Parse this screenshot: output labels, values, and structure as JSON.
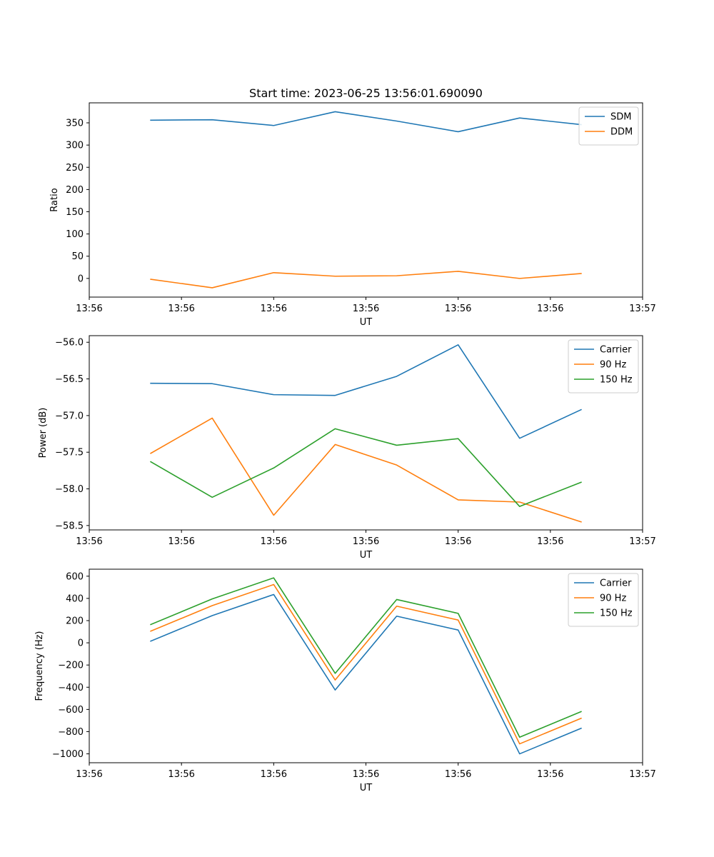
{
  "figure": {
    "title": "Start time: 2023-06-25 13:56:01.690090"
  },
  "colors": {
    "c0": "#1f77b4",
    "c1": "#ff7f0e",
    "c2": "#2ca02c"
  },
  "chart_data": [
    {
      "type": "line",
      "title": "Start time: 2023-06-25 13:56:01.690090",
      "xlabel": "UT",
      "ylabel": "Ratio",
      "xlim": [
        0,
        9
      ],
      "x": [
        1,
        2,
        3,
        4,
        5,
        6,
        7,
        8
      ],
      "x_tick_positions": [
        0,
        1.5,
        3,
        4.5,
        6,
        7.5,
        9
      ],
      "x_tick_labels": [
        "13:56",
        "13:56",
        "13:56",
        "13:56",
        "13:56",
        "13:56",
        "13:57"
      ],
      "ylim": [
        -42,
        395
      ],
      "y_ticks": [
        0,
        50,
        100,
        150,
        200,
        250,
        300,
        350
      ],
      "legend": "top-right",
      "series": [
        {
          "name": "SDM",
          "color": "#1f77b4",
          "values": [
            356,
            357,
            344,
            375,
            354,
            330,
            361,
            346
          ]
        },
        {
          "name": "DDM",
          "color": "#ff7f0e",
          "values": [
            -2,
            -21,
            13,
            5,
            6,
            16,
            0,
            11
          ]
        }
      ]
    },
    {
      "type": "line",
      "title": "",
      "xlabel": "UT",
      "ylabel": "Power (dB)",
      "xlim": [
        0,
        9
      ],
      "x": [
        1,
        2,
        3,
        4,
        5,
        6,
        7,
        8
      ],
      "x_tick_positions": [
        0,
        1.5,
        3,
        4.5,
        6,
        7.5,
        9
      ],
      "x_tick_labels": [
        "13:56",
        "13:56",
        "13:56",
        "13:56",
        "13:56",
        "13:56",
        "13:57"
      ],
      "ylim": [
        -58.56,
        -55.91
      ],
      "y_ticks": [
        -58.5,
        -58.0,
        -57.5,
        -57.0,
        -56.5,
        -56.0
      ],
      "y_tick_labels": [
        "−58.5",
        "−58.0",
        "−57.5",
        "−57.0",
        "−56.5",
        "−56.0"
      ],
      "legend": "top-right",
      "series": [
        {
          "name": "Carrier",
          "color": "#1f77b4",
          "values": [
            -56.56,
            -56.565,
            -56.715,
            -56.725,
            -56.465,
            -56.035,
            -57.31,
            -56.92
          ]
        },
        {
          "name": "90 Hz",
          "color": "#ff7f0e",
          "values": [
            -57.515,
            -57.035,
            -58.36,
            -57.395,
            -57.675,
            -58.15,
            -58.18,
            -58.45
          ]
        },
        {
          "name": "150 Hz",
          "color": "#2ca02c",
          "values": [
            -57.63,
            -58.115,
            -57.715,
            -57.18,
            -57.405,
            -57.315,
            -58.24,
            -57.91
          ]
        }
      ]
    },
    {
      "type": "line",
      "title": "",
      "xlabel": "UT",
      "ylabel": "Frequency (Hz)",
      "xlim": [
        0,
        9
      ],
      "x": [
        1,
        2,
        3,
        4,
        5,
        6,
        7,
        8
      ],
      "x_tick_positions": [
        0,
        1.5,
        3,
        4.5,
        6,
        7.5,
        9
      ],
      "x_tick_labels": [
        "13:56",
        "13:56",
        "13:56",
        "13:56",
        "13:56",
        "13:56",
        "13:57"
      ],
      "ylim": [
        -1080,
        663
      ],
      "y_ticks": [
        -1000,
        -800,
        -600,
        -400,
        -200,
        0,
        200,
        400,
        600
      ],
      "y_tick_labels": [
        "−1000",
        "−800",
        "−600",
        "−400",
        "−200",
        "0",
        "200",
        "400",
        "600"
      ],
      "legend": "top-right",
      "series": [
        {
          "name": "Carrier",
          "color": "#1f77b4",
          "values": [
            15,
            245,
            435,
            -425,
            240,
            115,
            -1000,
            -770
          ]
        },
        {
          "name": "90 Hz",
          "color": "#ff7f0e",
          "values": [
            105,
            335,
            525,
            -335,
            330,
            205,
            -910,
            -680
          ]
        },
        {
          "name": "150 Hz",
          "color": "#2ca02c",
          "values": [
            165,
            395,
            585,
            -275,
            390,
            265,
            -850,
            -620
          ]
        }
      ]
    }
  ]
}
